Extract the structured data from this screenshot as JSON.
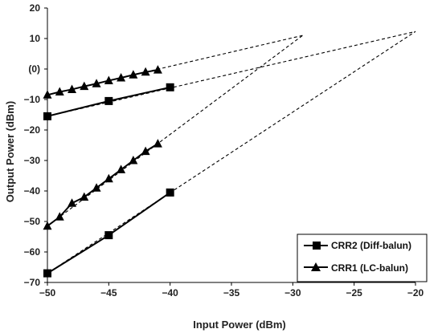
{
  "chart_data": {
    "type": "line",
    "xlabel": "Input Power (dBm)",
    "ylabel": "Output Power (dBm)",
    "xlim": [
      -50,
      -20
    ],
    "ylim": [
      -70,
      20
    ],
    "xticks": [
      -50,
      -45,
      -40,
      -35,
      -30,
      -25,
      -20
    ],
    "yticks": [
      -70,
      -60,
      -50,
      -40,
      -30,
      -20,
      -10,
      0,
      10,
      20
    ],
    "xtick_labels": [
      "−50",
      "−45",
      "−40",
      "−35",
      "−30",
      "−25",
      "−20"
    ],
    "ytick_labels": [
      "−70",
      "−60",
      "−50",
      "−40",
      "−30",
      "−20",
      "−10",
      "(0)",
      "10",
      "20"
    ],
    "grid": false,
    "legend_position": "bottom-right",
    "series": [
      {
        "name": "CRR2 (Diff-balun)",
        "marker": "square",
        "color": "#000000",
        "group": "fundamental",
        "x": [
          -50,
          -45,
          -40
        ],
        "y": [
          -15.5,
          -10.5,
          -6
        ]
      },
      {
        "name": "CRR1 (LC-balun)",
        "marker": "triangle",
        "color": "#000000",
        "group": "fundamental",
        "x": [
          -50,
          -49,
          -48,
          -47,
          -46,
          -45,
          -44,
          -43,
          -42,
          -41
        ],
        "y": [
          -8.5,
          -7.5,
          -6.7,
          -5.7,
          -4.8,
          -3.8,
          -2.9,
          -1.9,
          -1,
          -0.3
        ]
      },
      {
        "name": "CRR2 (Diff-balun)",
        "marker": "square",
        "color": "#000000",
        "group": "third-order",
        "x": [
          -50,
          -45,
          -40
        ],
        "y": [
          -67,
          -54.5,
          -40.5
        ]
      },
      {
        "name": "CRR1 (LC-balun)",
        "marker": "triangle",
        "color": "#000000",
        "group": "third-order",
        "x": [
          -50,
          -49,
          -48,
          -47,
          -46,
          -45,
          -44,
          -43,
          -42,
          -41
        ],
        "y": [
          -51.5,
          -48.5,
          -44,
          -42,
          -39,
          -36,
          -33,
          -30,
          -27,
          -24.5
        ]
      }
    ],
    "extrapolation_lines": [
      {
        "x": [
          -50,
          -29.2
        ],
        "y": [
          -8.5,
          11
        ]
      },
      {
        "x": [
          -50,
          -20
        ],
        "y": [
          -15.5,
          12.3
        ]
      },
      {
        "x": [
          -50,
          -29.2
        ],
        "y": [
          -51.5,
          11
        ]
      },
      {
        "x": [
          -50,
          -20
        ],
        "y": [
          -67,
          12.3
        ]
      }
    ],
    "legend": [
      {
        "label": "CRR2 (Diff-balun)",
        "marker": "square"
      },
      {
        "label": "CRR1 (LC-balun)",
        "marker": "triangle"
      }
    ]
  }
}
